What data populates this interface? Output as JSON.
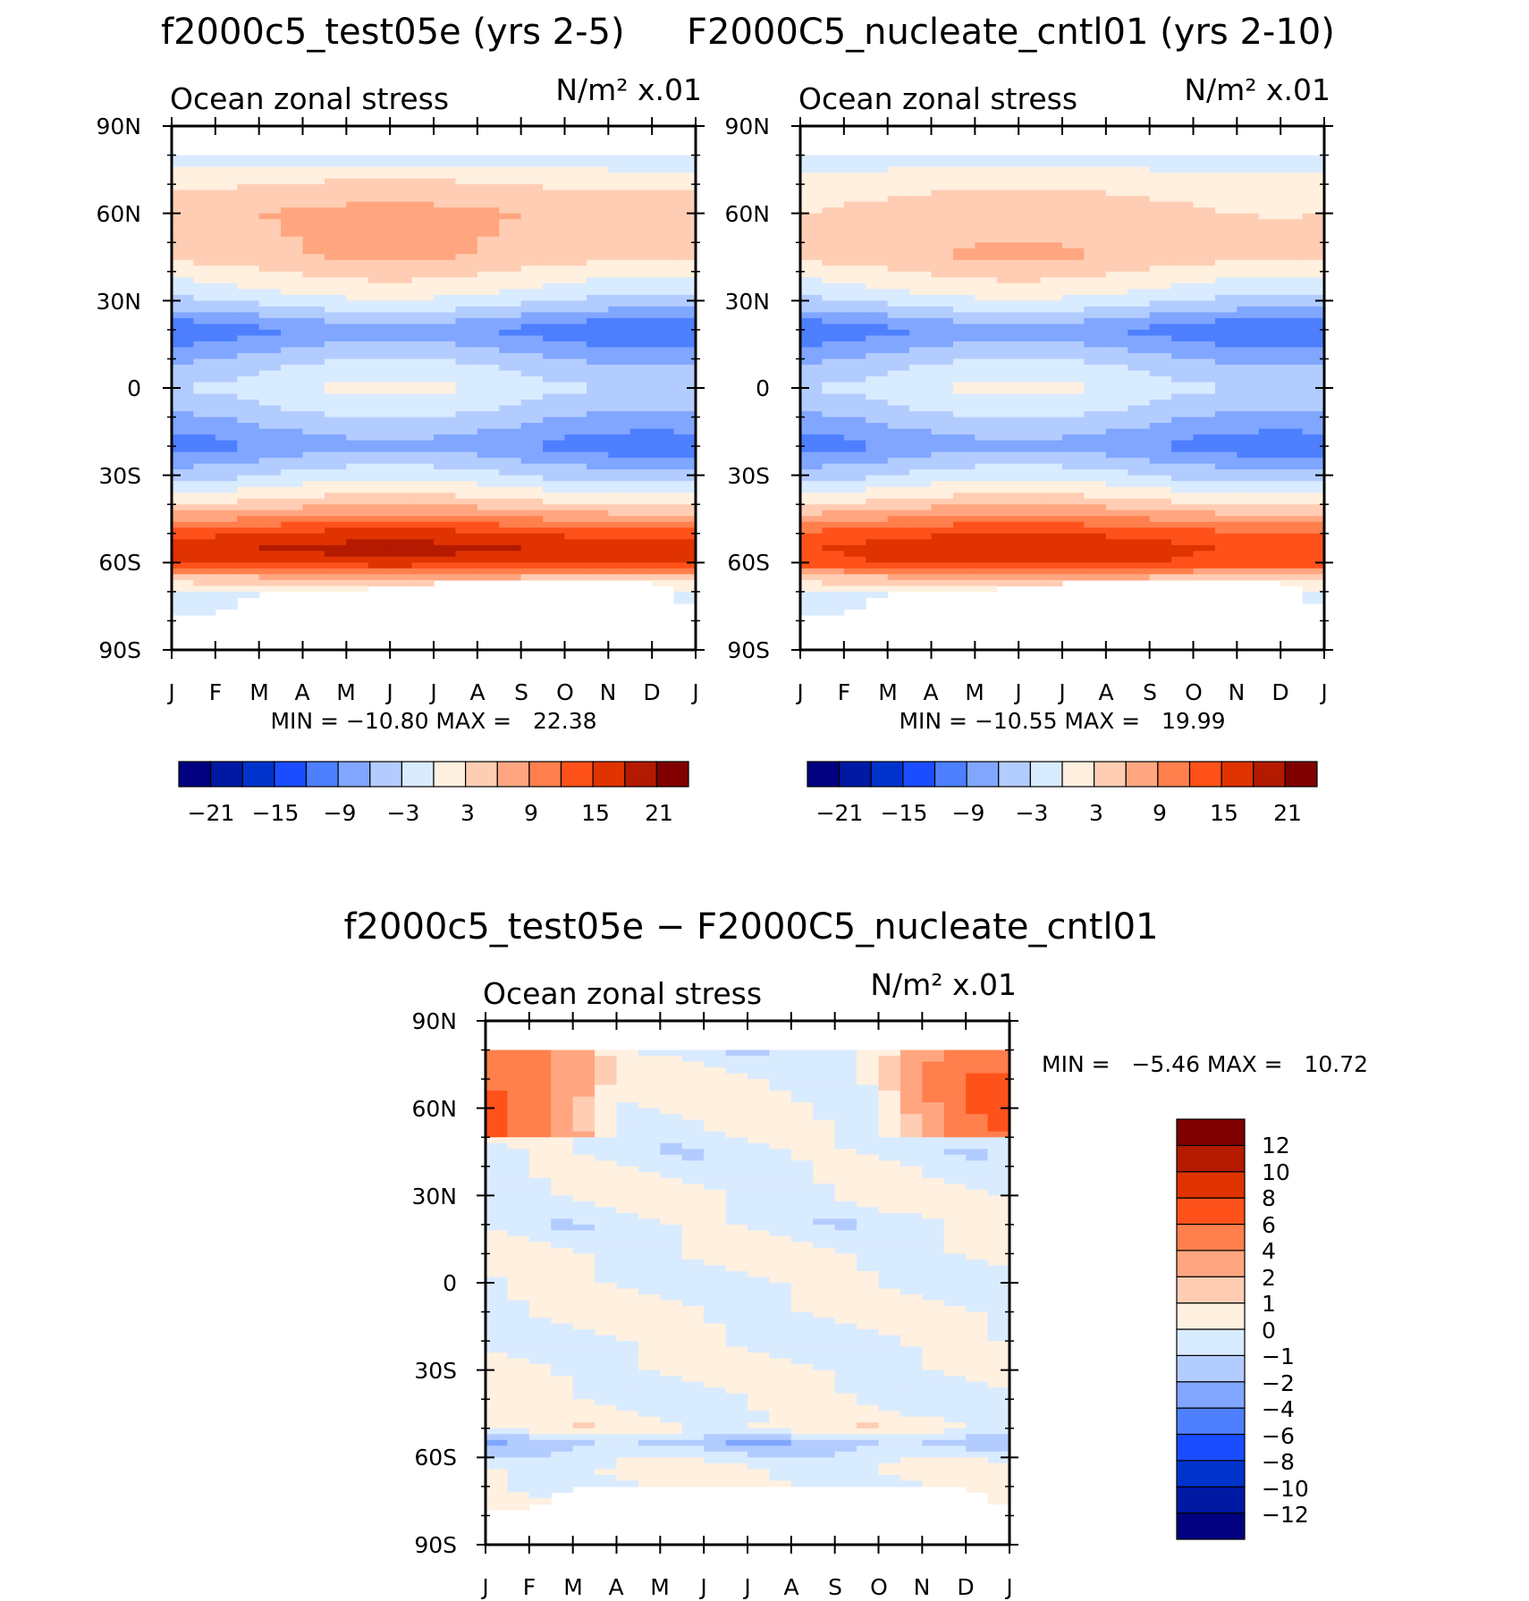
{
  "chart_data": [
    {
      "id": "p1",
      "type": "heatmap",
      "title": "f2000c5_test05e (yrs 2-5)",
      "left_label": "Ocean zonal stress",
      "right_label": "N/m² x.01",
      "x_tick_labels": [
        "J",
        "F",
        "M",
        "A",
        "M",
        "J",
        "J",
        "A",
        "S",
        "O",
        "N",
        "D",
        "J"
      ],
      "y_tick_labels": [
        "90N",
        "60N",
        "30N",
        "0",
        "30S",
        "60S",
        "90S"
      ],
      "y_ticks": [
        90,
        60,
        30,
        0,
        -30,
        -60,
        -90
      ],
      "xlim": [
        0,
        12
      ],
      "ylim": [
        -90,
        90
      ],
      "stats_text": "MIN = −10.80 MAX =   22.38",
      "min": -10.8,
      "max": 22.38,
      "colorbar_labels": [
        "−21",
        "−15",
        "−9",
        "−3",
        "3",
        "9",
        "15",
        "21"
      ],
      "colorbar_levels": [
        -24,
        -21,
        -18,
        -15,
        -12,
        -9,
        -6,
        -3,
        0,
        3,
        6,
        9,
        12,
        15,
        18,
        21,
        24
      ],
      "colors": [
        "#000080",
        "#0019a3",
        "#0033cc",
        "#1a4dff",
        "#4d7fff",
        "#80a6ff",
        "#b3ccff",
        "#d9ebff",
        "#fff0e0",
        "#ffcdb3",
        "#ffa680",
        "#ff7f4d",
        "#ff521a",
        "#e03300",
        "#b31a00",
        "#800000"
      ],
      "profile_lat": [
        90,
        80,
        70,
        60,
        45,
        30,
        20,
        10,
        0,
        -10,
        -20,
        -30,
        -40,
        -50,
        -55,
        -60,
        -65,
        -70,
        -80,
        -90
      ],
      "profile_val": [
        0,
        -2,
        3,
        6,
        5,
        -2,
        -10,
        -5,
        -1,
        -5,
        -9,
        -3,
        4,
        15,
        18,
        16,
        6,
        0,
        0,
        0
      ],
      "ice_edge": [
        -77,
        -77,
        -70,
        -70,
        -70,
        -67,
        -67,
        -66,
        -66,
        -66,
        -66,
        -66,
        -77
      ]
    },
    {
      "id": "p2",
      "type": "heatmap",
      "title": "F2000C5_nucleate_cntl01 (yrs 2-10)",
      "left_label": "Ocean zonal stress",
      "right_label": "N/m² x.01",
      "x_tick_labels": [
        "J",
        "F",
        "M",
        "A",
        "M",
        "J",
        "J",
        "A",
        "S",
        "O",
        "N",
        "D",
        "J"
      ],
      "y_tick_labels": [
        "90N",
        "60N",
        "30N",
        "0",
        "30S",
        "60S",
        "90S"
      ],
      "y_ticks": [
        90,
        60,
        30,
        0,
        -30,
        -60,
        -90
      ],
      "xlim": [
        0,
        12
      ],
      "ylim": [
        -90,
        90
      ],
      "stats_text": "MIN = −10.55 MAX =   19.99",
      "min": -10.55,
      "max": 19.99,
      "colorbar_labels": [
        "−21",
        "−15",
        "−9",
        "−3",
        "3",
        "9",
        "15",
        "21"
      ],
      "colorbar_levels": [
        -24,
        -21,
        -18,
        -15,
        -12,
        -9,
        -6,
        -3,
        0,
        3,
        6,
        9,
        12,
        15,
        18,
        21,
        24
      ],
      "colors": [
        "#000080",
        "#0019a3",
        "#0033cc",
        "#1a4dff",
        "#4d7fff",
        "#80a6ff",
        "#b3ccff",
        "#d9ebff",
        "#fff0e0",
        "#ffcdb3",
        "#ffa680",
        "#ff7f4d",
        "#ff521a",
        "#e03300",
        "#b31a00",
        "#800000"
      ],
      "profile_lat": [
        90,
        80,
        70,
        60,
        45,
        30,
        20,
        10,
        0,
        -10,
        -20,
        -30,
        -40,
        -50,
        -55,
        -60,
        -65,
        -70,
        -80,
        -90
      ],
      "profile_val": [
        0,
        -2,
        2,
        4,
        5,
        -2,
        -10,
        -5,
        -1,
        -5,
        -9,
        -3,
        4,
        14,
        16,
        15,
        6,
        0,
        0,
        0
      ],
      "ice_edge": [
        -77,
        -77,
        -70,
        -70,
        -70,
        -67,
        -67,
        -66,
        -66,
        -66,
        -66,
        -66,
        -77
      ]
    },
    {
      "id": "p3",
      "type": "heatmap",
      "title": "f2000c5_test05e − F2000C5_nucleate_cntl01",
      "left_label": "Ocean zonal stress",
      "right_label": "N/m² x.01",
      "x_tick_labels": [
        "J",
        "F",
        "M",
        "A",
        "M",
        "J",
        "J",
        "A",
        "S",
        "O",
        "N",
        "D",
        "J"
      ],
      "y_tick_labels": [
        "90N",
        "60N",
        "30N",
        "0",
        "30S",
        "60S",
        "90S"
      ],
      "y_ticks": [
        90,
        60,
        30,
        0,
        -30,
        -60,
        -90
      ],
      "xlim": [
        0,
        12
      ],
      "ylim": [
        -90,
        90
      ],
      "stats_text": "MIN =   −5.46 MAX =   10.72",
      "min": -5.46,
      "max": 10.72,
      "colorbar_labels": [
        "12",
        "10",
        "8",
        "6",
        "4",
        "2",
        "1",
        "0",
        "−1",
        "−2",
        "−4",
        "−6",
        "−8",
        "−10",
        "−12"
      ],
      "colorbar_levels": [
        -14,
        -12,
        -10,
        -8,
        -6,
        -4,
        -2,
        -1,
        0,
        1,
        2,
        4,
        6,
        8,
        10,
        12,
        14
      ],
      "colors": [
        "#000080",
        "#0019a3",
        "#0033cc",
        "#1a4dff",
        "#4d7fff",
        "#80a6ff",
        "#b3ccff",
        "#d9ebff",
        "#fff0e0",
        "#ffcdb3",
        "#ffa680",
        "#ff7f4d",
        "#ff521a",
        "#e03300",
        "#b31a00",
        "#800000"
      ],
      "profile_lat": [
        90,
        80,
        70,
        60,
        45,
        30,
        20,
        10,
        0,
        -10,
        -20,
        -30,
        -40,
        -50,
        -55,
        -60,
        -65,
        -70,
        -80,
        -90
      ],
      "profile_val": [
        0,
        -0.5,
        0.3,
        0.2,
        -0.5,
        0.2,
        -0.5,
        0.3,
        -0.3,
        0.3,
        -0.3,
        0.3,
        -0.3,
        0.5,
        -1.5,
        -0.5,
        0.3,
        0,
        0,
        0
      ],
      "ice_edge": [
        -77,
        -77,
        -70,
        -70,
        -70,
        -70,
        -69,
        -69,
        -69,
        -69,
        -69,
        -69,
        -77
      ]
    }
  ]
}
